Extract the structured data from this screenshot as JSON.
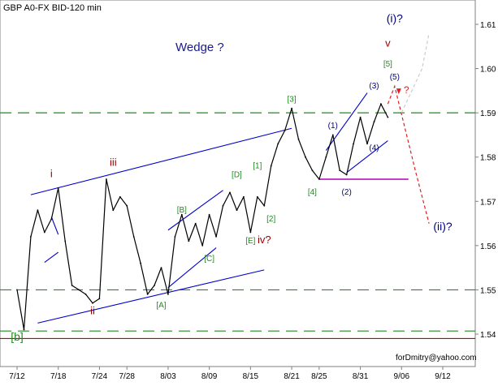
{
  "chart_data": {
    "type": "line",
    "title": "GBP A0-FX BID-120 min",
    "annotation_main": "Wedge ?",
    "footer": "forDmitry@yahoo.com",
    "x_ticks": [
      "7/12",
      "7/18",
      "7/24",
      "7/28",
      "8/03",
      "8/09",
      "8/15",
      "8/21",
      "8/25",
      "8/31",
      "9/06",
      "9/12"
    ],
    "y_ticks": [
      "1.54",
      "1.55",
      "1.56",
      "1.57",
      "1.58",
      "1.59",
      "1.60",
      "1.61"
    ],
    "ylim": [
      1.5385,
      1.6145
    ],
    "series": [
      {
        "points": [
          [
            "7/12",
            1.55
          ],
          [
            "7/13",
            1.541
          ],
          [
            "7/14",
            1.562
          ],
          [
            "7/15",
            1.568
          ],
          [
            "7/16",
            1.563
          ],
          [
            "7/17",
            1.566
          ],
          [
            "7/18",
            1.573
          ],
          [
            "7/19",
            1.561
          ],
          [
            "7/20",
            1.551
          ],
          [
            "7/21",
            1.55
          ],
          [
            "7/22",
            1.549
          ],
          [
            "7/23",
            1.547
          ],
          [
            "7/24",
            1.548
          ],
          [
            "7/25",
            1.575
          ],
          [
            "7/26",
            1.568
          ],
          [
            "7/27",
            1.571
          ],
          [
            "7/28",
            1.569
          ],
          [
            "7/29",
            1.562
          ],
          [
            "7/30",
            1.556
          ],
          [
            "7/31",
            1.549
          ],
          [
            "8/01",
            1.551
          ],
          [
            "8/02",
            1.555
          ],
          [
            "8/03",
            1.549
          ],
          [
            "8/04",
            1.562
          ],
          [
            "8/05",
            1.567
          ],
          [
            "8/06",
            1.561
          ],
          [
            "8/07",
            1.565
          ],
          [
            "8/08",
            1.56
          ],
          [
            "8/09",
            1.567
          ],
          [
            "8/10",
            1.562
          ],
          [
            "8/11",
            1.569
          ],
          [
            "8/12",
            1.572
          ],
          [
            "8/13",
            1.568
          ],
          [
            "8/14",
            1.571
          ],
          [
            "8/15",
            1.563
          ],
          [
            "8/16",
            1.571
          ],
          [
            "8/17",
            1.569
          ],
          [
            "8/18",
            1.578
          ],
          [
            "8/19",
            1.583
          ],
          [
            "8/20",
            1.586
          ],
          [
            "8/21",
            1.591
          ],
          [
            "8/22",
            1.584
          ],
          [
            "8/23",
            1.58
          ],
          [
            "8/24",
            1.577
          ],
          [
            "8/25",
            1.575
          ],
          [
            "8/26",
            1.58
          ],
          [
            "8/27",
            1.585
          ],
          [
            "8/28",
            1.577
          ],
          [
            "8/29",
            1.576
          ],
          [
            "8/30",
            1.583
          ],
          [
            "8/31",
            1.589
          ],
          [
            "9/01",
            1.583
          ],
          [
            "9/02",
            1.588
          ],
          [
            "9/03",
            1.592
          ],
          [
            "9/04",
            1.589
          ]
        ]
      }
    ],
    "channel_lines": [
      [
        [
          "7/14",
          1.5715
        ],
        [
          "8/21",
          1.5865
        ]
      ],
      [
        [
          "7/15",
          1.5425
        ],
        [
          "8/17",
          1.5545
        ]
      ],
      [
        [
          "8/03",
          1.5635
        ],
        [
          "8/11",
          1.5725
        ]
      ],
      [
        [
          "8/03",
          1.5505
        ],
        [
          "8/10",
          1.5595
        ]
      ],
      [
        [
          "8/26",
          1.5815
        ],
        [
          "9/01",
          1.5945
        ]
      ],
      [
        [
          "8/29",
          1.5765
        ],
        [
          "9/04",
          1.5837
        ]
      ],
      [
        [
          "7/17",
          1.5665
        ],
        [
          "7/18",
          1.5625
        ]
      ],
      [
        [
          "7/16",
          1.5562
        ],
        [
          "7/18",
          1.5585
        ]
      ]
    ],
    "horizontal_levels": [
      {
        "y": 1.59,
        "style": "dashed",
        "color": "#228b22"
      },
      {
        "y": 1.55,
        "style": "dashed",
        "color": "#228b22"
      },
      {
        "y": 1.5407,
        "style": "dashed",
        "color": "#228b22"
      },
      {
        "y": 1.539,
        "style": "solid",
        "color": "#cc0000"
      }
    ],
    "support_segment": {
      "x1": "8/25",
      "x2": "9/07",
      "y": 1.575,
      "color": "#b000b0"
    },
    "forecast": [
      {
        "points": [
          [
            "9/04",
            1.592
          ],
          [
            "9/05",
            1.596
          ],
          [
            "9/08",
            1.577
          ],
          [
            "9/10",
            1.565
          ]
        ],
        "color": "#e02020"
      },
      {
        "points": [
          [
            "9/06",
            1.59
          ],
          [
            "9/09",
            1.6
          ],
          [
            "9/10",
            1.608
          ]
        ],
        "color": "#cccccc"
      }
    ],
    "wave_labels": [
      {
        "text": "[b]",
        "x": "7/12",
        "y": 1.5385,
        "color": "#228b22"
      },
      {
        "text": "i",
        "x": "7/17",
        "y": 1.5755,
        "color": "#990000"
      },
      {
        "text": "ii",
        "x": "7/23",
        "y": 1.5445,
        "color": "#990000"
      },
      {
        "text": "iii",
        "x": "7/26",
        "y": 1.578,
        "color": "#990000"
      },
      {
        "text": "iv?",
        "x": "8/17",
        "y": 1.5605,
        "color": "#990000"
      },
      {
        "text": "v",
        "x": "9/04",
        "y": 1.605,
        "color": "#990000"
      },
      {
        "text": "[A]",
        "x": "8/02",
        "y": 1.546,
        "color": "#228b22"
      },
      {
        "text": "[B]",
        "x": "8/05",
        "y": 1.5675,
        "color": "#228b22"
      },
      {
        "text": "[C]",
        "x": "8/09",
        "y": 1.5565,
        "color": "#228b22"
      },
      {
        "text": "[D]",
        "x": "8/13",
        "y": 1.5755,
        "color": "#228b22"
      },
      {
        "text": "[E]",
        "x": "8/15",
        "y": 1.5605,
        "color": "#228b22"
      },
      {
        "text": "[1]",
        "x": "8/16",
        "y": 1.5775,
        "color": "#228b22"
      },
      {
        "text": "[2]",
        "x": "8/18",
        "y": 1.5655,
        "color": "#228b22"
      },
      {
        "text": "[3]",
        "x": "8/21",
        "y": 1.5925,
        "color": "#228b22"
      },
      {
        "text": "[4]",
        "x": "8/24",
        "y": 1.5715,
        "color": "#228b22"
      },
      {
        "text": "[5]",
        "x": "9/04",
        "y": 1.6005,
        "color": "#228b22"
      },
      {
        "text": "(1)",
        "x": "8/27",
        "y": 1.5865,
        "color": "#000080"
      },
      {
        "text": "(2)",
        "x": "8/29",
        "y": 1.5715,
        "color": "#000080"
      },
      {
        "text": "(3)",
        "x": "9/02",
        "y": 1.5955,
        "color": "#000080"
      },
      {
        "text": "(4)",
        "x": "9/02",
        "y": 1.5815,
        "color": "#000080"
      },
      {
        "text": "(5)",
        "x": "9/05",
        "y": 1.5975,
        "color": "#000080"
      },
      {
        "text": "(i)?",
        "x": "9/05",
        "y": 1.6105,
        "color": "#000080"
      },
      {
        "text": "(ii)?",
        "x": "9/12",
        "y": 1.5635,
        "color": "#000080"
      }
    ],
    "grid": false,
    "colors": {
      "price": "#000000",
      "channel": "#0000cc",
      "labels": "#000080"
    }
  }
}
